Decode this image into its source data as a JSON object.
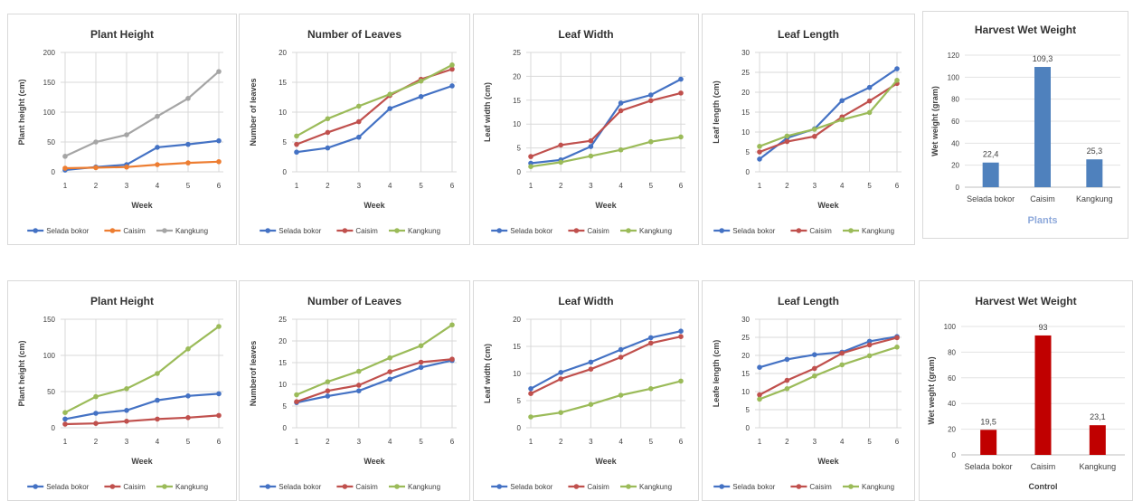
{
  "chart_data": [
    {
      "type": "line",
      "title": "Plant Height",
      "xlabel": "Week",
      "ylabel": "Plant height (cm)",
      "x": [
        1,
        2,
        3,
        4,
        5,
        6
      ],
      "ylim": [
        0,
        200
      ],
      "yticks": [
        0,
        50,
        100,
        150,
        200
      ],
      "series": [
        {
          "name": "Selada bokor",
          "color": "#4472C4",
          "values": [
            3,
            8,
            12,
            41,
            46,
            52
          ]
        },
        {
          "name": "Caisim",
          "color": "#ED7D31",
          "values": [
            6,
            7,
            8,
            12,
            15,
            17
          ]
        },
        {
          "name": "Kangkung",
          "color": "#A5A5A5",
          "values": [
            26,
            50,
            62,
            93,
            123,
            168
          ]
        }
      ]
    },
    {
      "type": "line",
      "title": "Number of Leaves",
      "xlabel": "Week",
      "ylabel": "Number of leaves",
      "x": [
        1,
        2,
        3,
        4,
        5,
        6
      ],
      "ylim": [
        0,
        20
      ],
      "yticks": [
        0,
        5,
        10,
        15,
        20
      ],
      "series": [
        {
          "name": "Selada bokor",
          "color": "#4472C4",
          "values": [
            3.3,
            4.0,
            5.8,
            10.6,
            12.6,
            14.4
          ]
        },
        {
          "name": "Caisim",
          "color": "#C0504D",
          "values": [
            4.6,
            6.6,
            8.4,
            12.8,
            15.5,
            17.2
          ]
        },
        {
          "name": "Kangkung",
          "color": "#9BBB59",
          "values": [
            6.0,
            8.9,
            11.0,
            13.0,
            15.2,
            17.9
          ]
        }
      ]
    },
    {
      "type": "line",
      "title": "Leaf Width",
      "xlabel": "Week",
      "ylabel": "Leaf width (cm)",
      "x": [
        1,
        2,
        3,
        4,
        5,
        6
      ],
      "ylim": [
        0,
        25
      ],
      "yticks": [
        0,
        5,
        10,
        15,
        20,
        25
      ],
      "series": [
        {
          "name": "Selada bokor",
          "color": "#4472C4",
          "values": [
            1.8,
            2.5,
            5.3,
            14.4,
            16.1,
            19.4
          ]
        },
        {
          "name": "Caisim",
          "color": "#C0504D",
          "values": [
            3.2,
            5.6,
            6.5,
            12.8,
            14.9,
            16.5
          ]
        },
        {
          "name": "Kangkung",
          "color": "#9BBB59",
          "values": [
            1.1,
            2.0,
            3.3,
            4.6,
            6.3,
            7.3
          ]
        }
      ]
    },
    {
      "type": "line",
      "title": "Leaf Length",
      "xlabel": "Week",
      "ylabel": "Leaf length (cm)",
      "x": [
        1,
        2,
        3,
        4,
        5,
        6
      ],
      "ylim": [
        0,
        30
      ],
      "yticks": [
        0,
        5,
        10,
        15,
        20,
        25,
        30
      ],
      "series": [
        {
          "name": "Selada bokor",
          "color": "#4472C4",
          "values": [
            3.2,
            8.5,
            10.8,
            17.9,
            21.2,
            25.9
          ]
        },
        {
          "name": "Caisim",
          "color": "#C0504D",
          "values": [
            5.0,
            7.6,
            8.9,
            13.8,
            17.8,
            22.2
          ]
        },
        {
          "name": "Kangkung",
          "color": "#9BBB59",
          "values": [
            6.4,
            9.0,
            10.7,
            13.1,
            14.9,
            23.0
          ]
        }
      ]
    },
    {
      "type": "bar",
      "title": "Harvest Wet Weight",
      "xlabel": "Plants",
      "ylabel": "Wet weight (gram)",
      "categories": [
        "Selada bokor",
        "Caisim",
        "Kangkung"
      ],
      "values": [
        22.4,
        109.3,
        25.3
      ],
      "data_labels": [
        "22,4",
        "109,3",
        "25,3"
      ],
      "ylim": [
        0,
        120
      ],
      "yticks": [
        0,
        20,
        40,
        60,
        80,
        100,
        120
      ],
      "color": "#4F81BD"
    },
    {
      "type": "line",
      "title": "Plant Height",
      "xlabel": "Week",
      "ylabel": "Plant height (cm)",
      "x": [
        1,
        2,
        3,
        4,
        5,
        6
      ],
      "ylim": [
        0,
        150
      ],
      "yticks": [
        0,
        50,
        100,
        150
      ],
      "series": [
        {
          "name": "Selada bokor",
          "color": "#4472C4",
          "values": [
            12,
            20,
            24,
            38,
            44,
            47
          ]
        },
        {
          "name": "Caisim",
          "color": "#C0504D",
          "values": [
            5,
            6,
            9,
            12,
            14,
            17
          ]
        },
        {
          "name": "Kangkung",
          "color": "#9BBB59",
          "values": [
            21,
            43,
            54,
            75,
            109,
            140
          ]
        }
      ]
    },
    {
      "type": "line",
      "title": "Number of Leaves",
      "xlabel": "Week",
      "ylabel": "Numberof leaves",
      "x": [
        1,
        2,
        3,
        4,
        5,
        6
      ],
      "ylim": [
        0,
        25
      ],
      "yticks": [
        0,
        5,
        10,
        15,
        20,
        25
      ],
      "series": [
        {
          "name": "Selada bokor",
          "color": "#4472C4",
          "values": [
            5.8,
            7.3,
            8.5,
            11.2,
            13.9,
            15.5
          ]
        },
        {
          "name": "Caisim",
          "color": "#C0504D",
          "values": [
            6.0,
            8.5,
            9.8,
            12.9,
            15.1,
            15.8
          ]
        },
        {
          "name": "Kangkung",
          "color": "#9BBB59",
          "values": [
            7.6,
            10.6,
            13.0,
            16.1,
            18.9,
            23.7
          ]
        }
      ]
    },
    {
      "type": "line",
      "title": "Leaf Width",
      "xlabel": "Week",
      "ylabel": "Leaf width (cm)",
      "x": [
        1,
        2,
        3,
        4,
        5,
        6
      ],
      "ylim": [
        0,
        20
      ],
      "yticks": [
        0,
        5,
        10,
        15,
        20
      ],
      "series": [
        {
          "name": "Selada bokor",
          "color": "#4472C4",
          "values": [
            7.2,
            10.2,
            12.1,
            14.4,
            16.6,
            17.8
          ]
        },
        {
          "name": "Caisim",
          "color": "#C0504D",
          "values": [
            6.3,
            9.0,
            10.8,
            13.0,
            15.6,
            16.8
          ]
        },
        {
          "name": "Kangkung",
          "color": "#9BBB59",
          "values": [
            2.0,
            2.8,
            4.3,
            6.0,
            7.2,
            8.6
          ]
        }
      ]
    },
    {
      "type": "line",
      "title": "Leaf Length",
      "xlabel": "Week",
      "ylabel": "Leafe length (cm)",
      "x": [
        1,
        2,
        3,
        4,
        5,
        6
      ],
      "ylim": [
        0,
        30
      ],
      "yticks": [
        0,
        5,
        10,
        15,
        20,
        25,
        30
      ],
      "series": [
        {
          "name": "Selada bokor",
          "color": "#4472C4",
          "values": [
            16.7,
            18.9,
            20.2,
            20.9,
            23.9,
            25.2
          ]
        },
        {
          "name": "Caisim",
          "color": "#C0504D",
          "values": [
            9.1,
            13.1,
            16.4,
            20.6,
            22.9,
            24.9
          ]
        },
        {
          "name": "Kangkung",
          "color": "#9BBB59",
          "values": [
            7.9,
            10.8,
            14.3,
            17.4,
            19.9,
            22.3
          ]
        }
      ]
    },
    {
      "type": "bar",
      "title": "Harvest Wet Weight",
      "xlabel": "Control",
      "ylabel": "Wet weght (gram)",
      "categories": [
        "Selada bokor",
        "Caisim",
        "Kangkung"
      ],
      "values": [
        19.5,
        93,
        23.1
      ],
      "data_labels": [
        "19,5",
        "93",
        "23,1"
      ],
      "ylim": [
        0,
        100
      ],
      "yticks": [
        0,
        20,
        40,
        60,
        80,
        100
      ],
      "color": "#C00000"
    }
  ]
}
